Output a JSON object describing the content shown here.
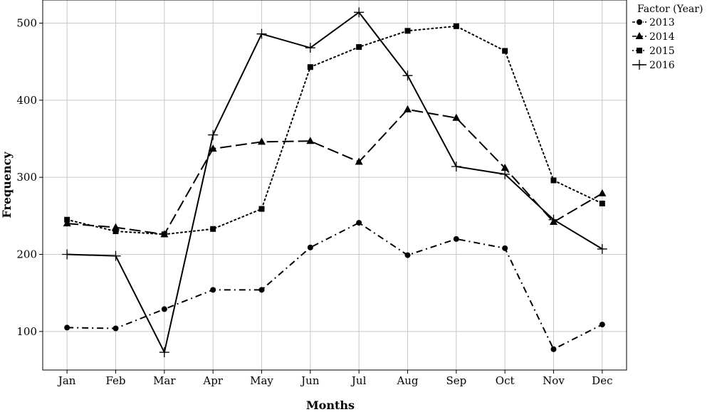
{
  "chart_data": {
    "type": "line",
    "xlabel": "Months",
    "ylabel": "Frequency",
    "categories": [
      "Jan",
      "Feb",
      "Mar",
      "Apr",
      "May",
      "Jun",
      "Jul",
      "Aug",
      "Sep",
      "Oct",
      "Nov",
      "Dec"
    ],
    "ylim": [
      50,
      530
    ],
    "yticks": [
      100,
      200,
      300,
      400,
      500
    ],
    "grid": true,
    "legend": {
      "title": "Factor (Year)",
      "position": "top-right"
    },
    "series": [
      {
        "name": "2013",
        "marker": "circle",
        "dash": "dash-dot",
        "values": [
          105,
          104,
          129,
          154,
          154,
          209,
          241,
          199,
          220,
          208,
          77,
          109
        ]
      },
      {
        "name": "2014",
        "marker": "triangle",
        "dash": "long-dash",
        "values": [
          240,
          235,
          226,
          337,
          346,
          347,
          320,
          388,
          377,
          312,
          242,
          279
        ]
      },
      {
        "name": "2015",
        "marker": "square",
        "dash": "dotted",
        "values": [
          245,
          230,
          226,
          233,
          259,
          443,
          469,
          490,
          496,
          464,
          296,
          266
        ]
      },
      {
        "name": "2016",
        "marker": "plus",
        "dash": "solid",
        "values": [
          200,
          198,
          73,
          355,
          486,
          468,
          514,
          432,
          314,
          304,
          245,
          207
        ]
      }
    ]
  }
}
